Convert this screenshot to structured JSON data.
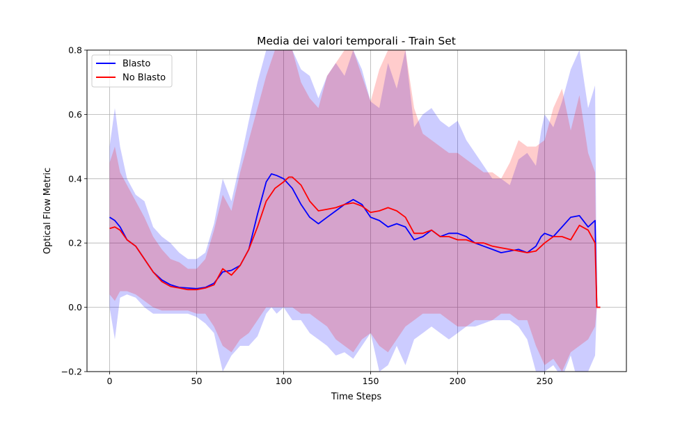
{
  "chart_data": {
    "type": "line",
    "title": "Media dei valori temporali - Train Set",
    "xlabel": "Time Steps",
    "ylabel": "Optical Flow Metric",
    "xlim": [
      -13,
      297
    ],
    "ylim": [
      -0.2,
      0.8
    ],
    "xticks": [
      0,
      50,
      100,
      150,
      200,
      250
    ],
    "yticks": [
      -0.2,
      0.0,
      0.2,
      0.4,
      0.6,
      0.8
    ],
    "ytick_labels": [
      "−0.2",
      "0.0",
      "0.2",
      "0.4",
      "0.6",
      "0.8"
    ],
    "grid": true,
    "legend_position": "top-left",
    "series": [
      {
        "name": "Blasto",
        "color": "#0000ff",
        "band_color": "#0000ff",
        "x": [
          0,
          3,
          6,
          10,
          15,
          20,
          25,
          30,
          35,
          40,
          45,
          50,
          55,
          60,
          65,
          70,
          75,
          80,
          85,
          90,
          93,
          96,
          100,
          105,
          110,
          115,
          120,
          125,
          130,
          135,
          140,
          145,
          150,
          155,
          160,
          165,
          170,
          175,
          180,
          185,
          190,
          195,
          200,
          205,
          210,
          215,
          220,
          225,
          230,
          235,
          240,
          245,
          248,
          250,
          255,
          260,
          265,
          270,
          275,
          279,
          280,
          282
        ],
        "mean": [
          0.28,
          0.27,
          0.25,
          0.21,
          0.19,
          0.15,
          0.11,
          0.085,
          0.07,
          0.062,
          0.06,
          0.058,
          0.062,
          0.075,
          0.11,
          0.115,
          0.13,
          0.18,
          0.29,
          0.39,
          0.415,
          0.41,
          0.4,
          0.37,
          0.32,
          0.28,
          0.26,
          0.28,
          0.3,
          0.32,
          0.335,
          0.32,
          0.28,
          0.27,
          0.25,
          0.26,
          0.25,
          0.21,
          0.22,
          0.24,
          0.22,
          0.23,
          0.23,
          0.22,
          0.2,
          0.19,
          0.18,
          0.17,
          0.175,
          0.18,
          0.17,
          0.19,
          0.22,
          0.23,
          0.22,
          0.25,
          0.28,
          0.285,
          0.25,
          0.27,
          0.0,
          0.0
        ],
        "upper": [
          0.5,
          0.62,
          0.5,
          0.4,
          0.35,
          0.33,
          0.25,
          0.22,
          0.2,
          0.17,
          0.15,
          0.15,
          0.17,
          0.26,
          0.4,
          0.33,
          0.45,
          0.58,
          0.7,
          0.8,
          0.82,
          0.8,
          0.8,
          0.8,
          0.74,
          0.72,
          0.65,
          0.72,
          0.76,
          0.72,
          0.8,
          0.74,
          0.64,
          0.62,
          0.76,
          0.68,
          0.8,
          0.56,
          0.6,
          0.62,
          0.58,
          0.56,
          0.58,
          0.52,
          0.48,
          0.44,
          0.4,
          0.4,
          0.38,
          0.46,
          0.48,
          0.44,
          0.55,
          0.6,
          0.56,
          0.64,
          0.74,
          0.8,
          0.62,
          0.69,
          0.0,
          0.0
        ],
        "lower": [
          0.0,
          -0.1,
          0.03,
          0.04,
          0.03,
          0.0,
          -0.02,
          -0.02,
          -0.02,
          -0.02,
          -0.02,
          -0.03,
          -0.05,
          -0.08,
          -0.2,
          -0.15,
          -0.12,
          -0.12,
          -0.09,
          -0.02,
          0.0,
          -0.02,
          0.0,
          -0.04,
          -0.04,
          -0.08,
          -0.1,
          -0.12,
          -0.15,
          -0.14,
          -0.16,
          -0.12,
          -0.08,
          -0.2,
          -0.18,
          -0.12,
          -0.18,
          -0.1,
          -0.08,
          -0.06,
          -0.08,
          -0.1,
          -0.08,
          -0.06,
          -0.06,
          -0.05,
          -0.04,
          -0.04,
          -0.04,
          -0.06,
          -0.1,
          -0.2,
          -0.22,
          -0.2,
          -0.18,
          -0.22,
          -0.15,
          -0.25,
          -0.2,
          -0.15,
          0.0,
          0.0
        ]
      },
      {
        "name": "No Blasto",
        "color": "#ff0000",
        "band_color": "#ff0000",
        "x": [
          0,
          3,
          6,
          10,
          15,
          20,
          25,
          30,
          35,
          40,
          45,
          50,
          55,
          60,
          65,
          70,
          75,
          80,
          85,
          90,
          95,
          100,
          103,
          105,
          110,
          115,
          120,
          125,
          130,
          135,
          140,
          145,
          150,
          155,
          160,
          165,
          170,
          175,
          180,
          185,
          190,
          195,
          200,
          205,
          210,
          215,
          220,
          225,
          230,
          235,
          240,
          245,
          250,
          255,
          260,
          265,
          270,
          275,
          279,
          280,
          282
        ],
        "mean": [
          0.245,
          0.25,
          0.24,
          0.21,
          0.19,
          0.15,
          0.11,
          0.08,
          0.065,
          0.06,
          0.055,
          0.055,
          0.06,
          0.07,
          0.12,
          0.1,
          0.13,
          0.18,
          0.25,
          0.33,
          0.37,
          0.39,
          0.405,
          0.405,
          0.38,
          0.33,
          0.3,
          0.305,
          0.31,
          0.32,
          0.325,
          0.315,
          0.295,
          0.3,
          0.31,
          0.3,
          0.28,
          0.23,
          0.23,
          0.24,
          0.22,
          0.22,
          0.21,
          0.21,
          0.2,
          0.2,
          0.19,
          0.185,
          0.18,
          0.175,
          0.17,
          0.175,
          0.2,
          0.22,
          0.22,
          0.21,
          0.255,
          0.24,
          0.2,
          0.0,
          0.0
        ],
        "upper": [
          0.45,
          0.5,
          0.42,
          0.38,
          0.33,
          0.28,
          0.22,
          0.18,
          0.15,
          0.14,
          0.12,
          0.12,
          0.15,
          0.24,
          0.35,
          0.3,
          0.42,
          0.52,
          0.62,
          0.72,
          0.8,
          0.8,
          0.8,
          0.8,
          0.7,
          0.65,
          0.62,
          0.72,
          0.76,
          0.8,
          0.8,
          0.72,
          0.64,
          0.74,
          0.8,
          0.8,
          0.8,
          0.62,
          0.54,
          0.52,
          0.5,
          0.48,
          0.48,
          0.46,
          0.44,
          0.42,
          0.42,
          0.4,
          0.45,
          0.52,
          0.5,
          0.5,
          0.52,
          0.62,
          0.68,
          0.55,
          0.66,
          0.48,
          0.42,
          0.0,
          0.0
        ],
        "lower": [
          0.04,
          0.02,
          0.05,
          0.05,
          0.04,
          0.02,
          0.0,
          -0.01,
          -0.01,
          -0.01,
          -0.01,
          -0.02,
          -0.02,
          -0.06,
          -0.12,
          -0.14,
          -0.1,
          -0.08,
          -0.04,
          0.0,
          0.0,
          0.0,
          0.0,
          0.0,
          -0.02,
          -0.02,
          -0.04,
          -0.06,
          -0.1,
          -0.12,
          -0.14,
          -0.1,
          -0.08,
          -0.12,
          -0.14,
          -0.1,
          -0.06,
          -0.04,
          -0.02,
          -0.02,
          -0.02,
          -0.04,
          -0.06,
          -0.06,
          -0.04,
          -0.04,
          -0.04,
          -0.02,
          -0.02,
          -0.04,
          -0.04,
          -0.12,
          -0.18,
          -0.16,
          -0.2,
          -0.14,
          -0.12,
          -0.1,
          -0.06,
          0.0,
          0.0
        ]
      }
    ]
  }
}
